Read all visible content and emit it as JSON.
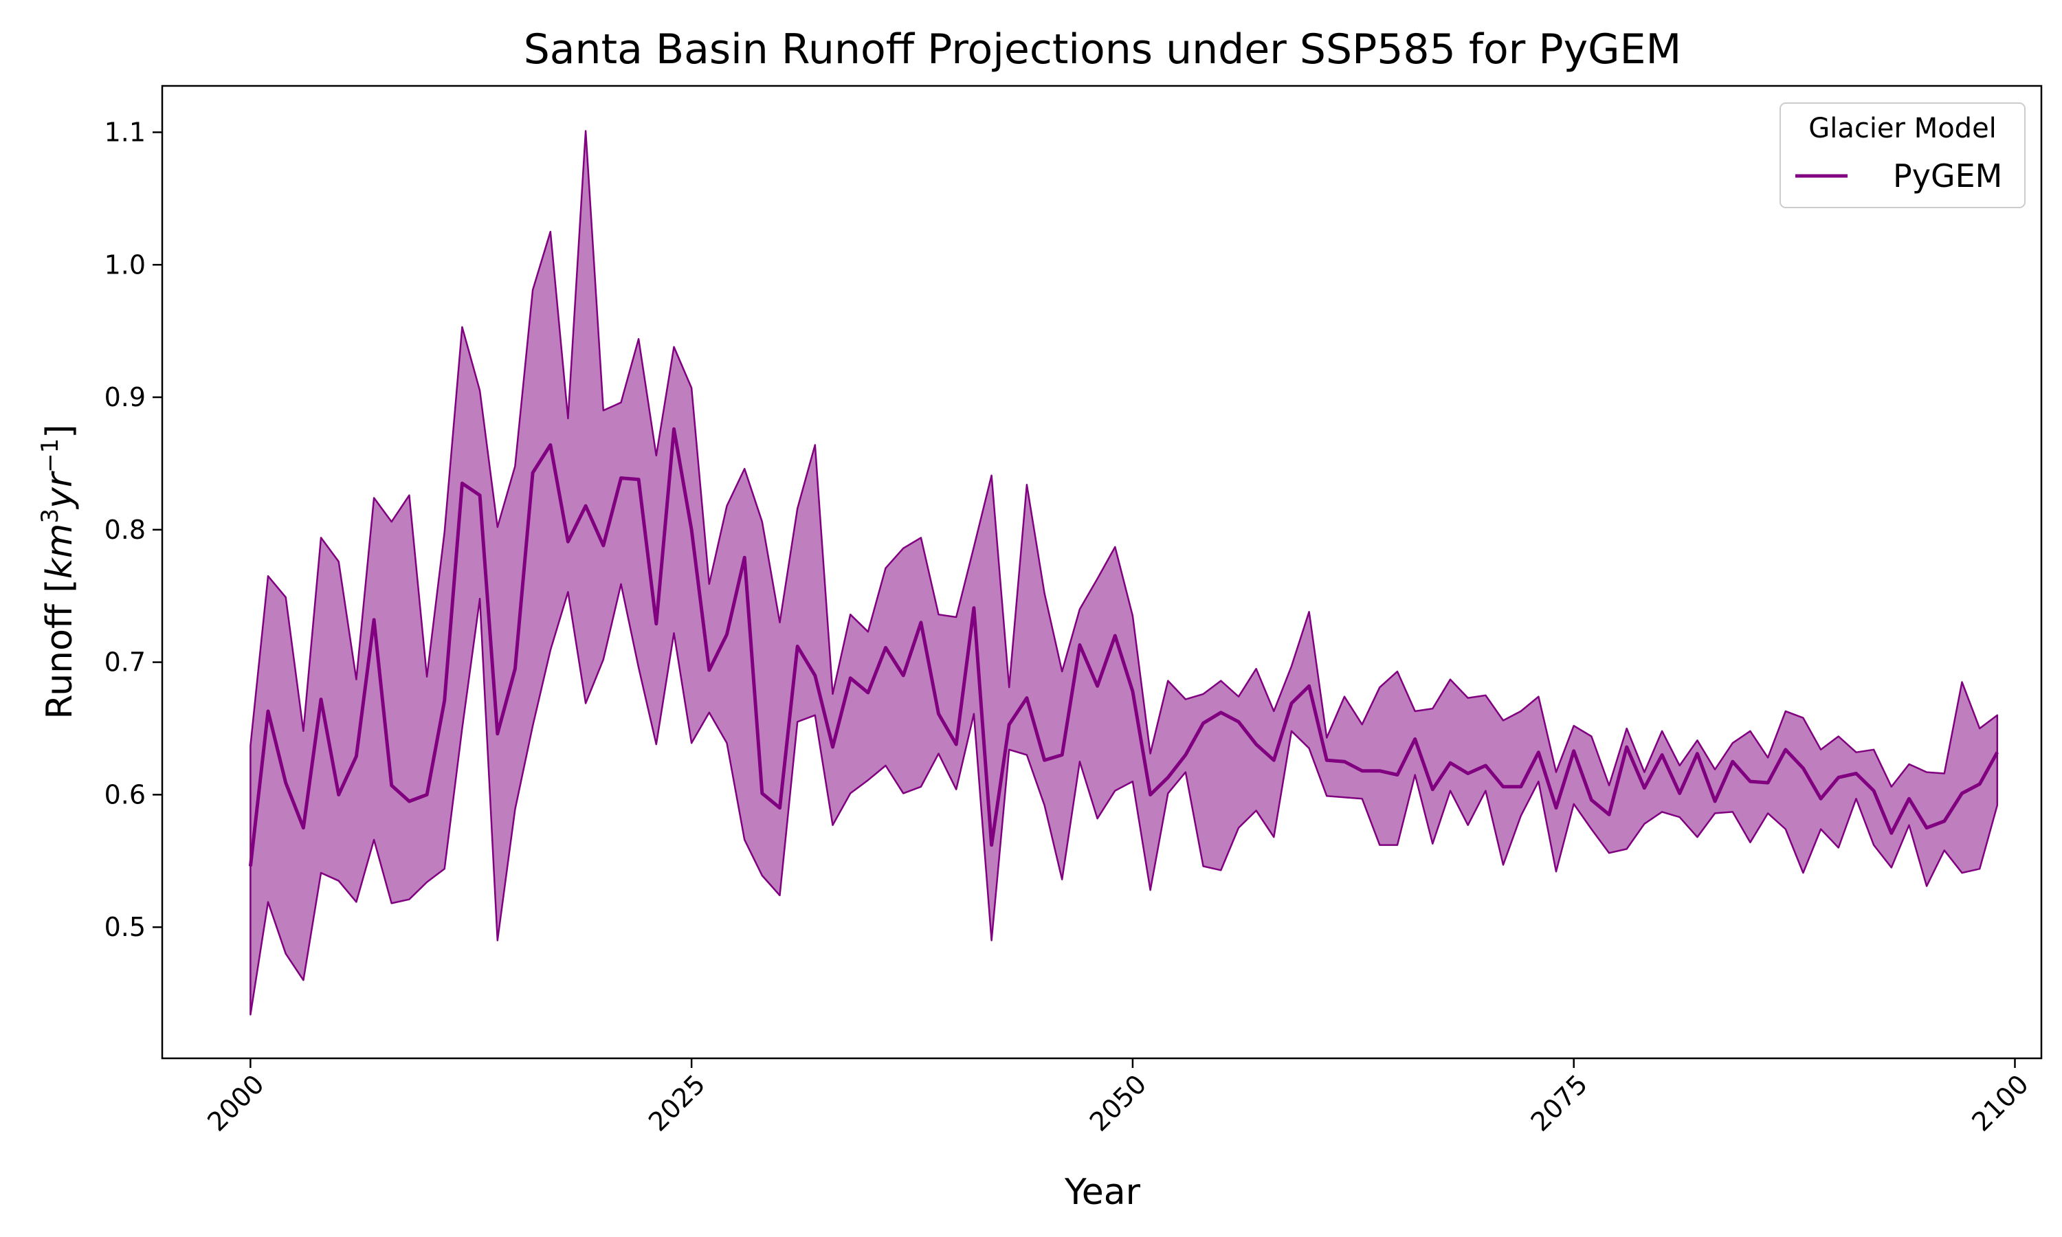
{
  "chart_data": {
    "type": "area",
    "title": "Santa Basin Runoff Projections under SSP585 for PyGEM",
    "xlabel": "Year",
    "ylabel": {
      "prefix": "Runoff [",
      "km": "km",
      "exp1": "3",
      "yr": "yr",
      "exp2": "−1",
      "suffix": "]"
    },
    "xlim": [
      1995,
      2101.5
    ],
    "ylim": [
      0.401,
      1.135
    ],
    "xticks": [
      2000,
      2025,
      2050,
      2075,
      2100
    ],
    "yticks": [
      0.5,
      0.6,
      0.7,
      0.8,
      0.9,
      1.0,
      1.1
    ],
    "legend": {
      "title": "Glacier Model",
      "placement": "top-right"
    },
    "grid": false,
    "series": [
      {
        "name": "PyGEM",
        "color": "#800080",
        "band_color": "#bf7fbf",
        "x_start": 2000,
        "mean": [
          0.546,
          0.663,
          0.609,
          0.575,
          0.672,
          0.6,
          0.629,
          0.732,
          0.607,
          0.595,
          0.6,
          0.671,
          0.835,
          0.826,
          0.646,
          0.695,
          0.843,
          0.864,
          0.791,
          0.818,
          0.788,
          0.839,
          0.838,
          0.729,
          0.876,
          0.8,
          0.694,
          0.721,
          0.779,
          0.601,
          0.59,
          0.712,
          0.69,
          0.636,
          0.688,
          0.677,
          0.711,
          0.69,
          0.73,
          0.661,
          0.638,
          0.741,
          0.562,
          0.653,
          0.673,
          0.626,
          0.63,
          0.713,
          0.682,
          0.72,
          0.678,
          0.6,
          0.613,
          0.63,
          0.654,
          0.662,
          0.655,
          0.638,
          0.626,
          0.669,
          0.682,
          0.626,
          0.625,
          0.618,
          0.618,
          0.615,
          0.642,
          0.604,
          0.624,
          0.616,
          0.622,
          0.606,
          0.606,
          0.632,
          0.59,
          0.633,
          0.596,
          0.585,
          0.636,
          0.605,
          0.63,
          0.601,
          0.631,
          0.595,
          0.625,
          0.61,
          0.609,
          0.634,
          0.62,
          0.597,
          0.613,
          0.616,
          0.603,
          0.571,
          0.597,
          0.575,
          0.58,
          0.601,
          0.608,
          0.632
        ],
        "upper": [
          0.637,
          0.765,
          0.749,
          0.648,
          0.794,
          0.776,
          0.687,
          0.824,
          0.806,
          0.826,
          0.689,
          0.798,
          0.953,
          0.905,
          0.802,
          0.848,
          0.981,
          1.025,
          0.884,
          1.101,
          0.89,
          0.896,
          0.944,
          0.856,
          0.938,
          0.907,
          0.759,
          0.818,
          0.846,
          0.806,
          0.73,
          0.816,
          0.864,
          0.676,
          0.736,
          0.723,
          0.771,
          0.786,
          0.794,
          0.736,
          0.734,
          0.787,
          0.841,
          0.681,
          0.834,
          0.752,
          0.693,
          0.74,
          0.763,
          0.787,
          0.735,
          0.631,
          0.686,
          0.672,
          0.676,
          0.686,
          0.674,
          0.695,
          0.663,
          0.697,
          0.738,
          0.643,
          0.674,
          0.653,
          0.681,
          0.693,
          0.663,
          0.665,
          0.687,
          0.673,
          0.675,
          0.656,
          0.663,
          0.674,
          0.617,
          0.652,
          0.644,
          0.607,
          0.65,
          0.617,
          0.648,
          0.622,
          0.641,
          0.619,
          0.639,
          0.648,
          0.628,
          0.663,
          0.658,
          0.634,
          0.644,
          0.632,
          0.634,
          0.606,
          0.623,
          0.617,
          0.616,
          0.685,
          0.65,
          0.66
        ],
        "lower": [
          0.434,
          0.519,
          0.48,
          0.46,
          0.541,
          0.535,
          0.519,
          0.566,
          0.518,
          0.521,
          0.534,
          0.544,
          0.65,
          0.748,
          0.49,
          0.589,
          0.652,
          0.709,
          0.753,
          0.669,
          0.702,
          0.759,
          0.696,
          0.638,
          0.722,
          0.639,
          0.662,
          0.639,
          0.566,
          0.539,
          0.524,
          0.655,
          0.66,
          0.577,
          0.601,
          0.611,
          0.622,
          0.601,
          0.606,
          0.631,
          0.604,
          0.661,
          0.49,
          0.634,
          0.63,
          0.592,
          0.536,
          0.625,
          0.582,
          0.603,
          0.61,
          0.528,
          0.601,
          0.617,
          0.546,
          0.543,
          0.575,
          0.588,
          0.568,
          0.648,
          0.635,
          0.599,
          0.598,
          0.597,
          0.562,
          0.562,
          0.615,
          0.563,
          0.603,
          0.577,
          0.603,
          0.547,
          0.584,
          0.61,
          0.542,
          0.593,
          0.574,
          0.556,
          0.559,
          0.578,
          0.587,
          0.583,
          0.568,
          0.586,
          0.587,
          0.564,
          0.586,
          0.574,
          0.541,
          0.574,
          0.56,
          0.597,
          0.562,
          0.545,
          0.577,
          0.531,
          0.558,
          0.541,
          0.544,
          0.592
        ]
      }
    ]
  }
}
